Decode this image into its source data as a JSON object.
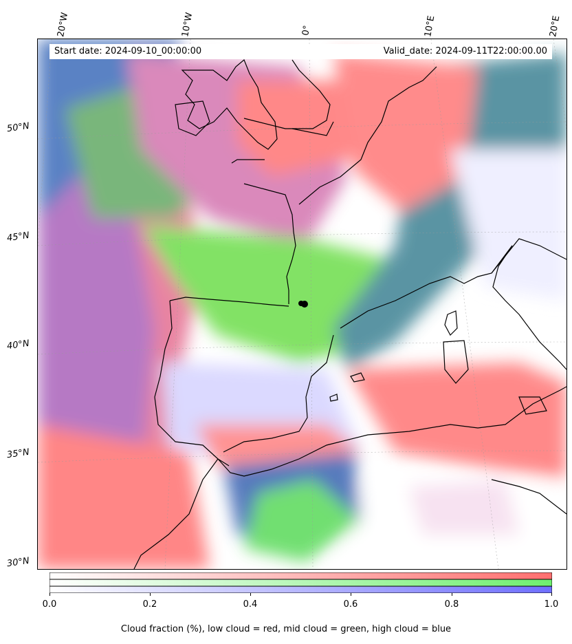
{
  "header": {
    "start_date": "Start date: 2024-09-10_00:00:00",
    "valid_date": "Valid_date: 2024-09-11T22:00:00.00"
  },
  "map": {
    "longitude_labels": [
      "20°W",
      "10°W",
      "0°",
      "10°E",
      "20°E"
    ],
    "latitude_labels": [
      "50°N",
      "45°N",
      "40°N",
      "35°N",
      "30°N"
    ],
    "layers": {
      "low_cloud_color": "#ff7070",
      "mid_cloud_color": "#70ee60",
      "high_cloud_color": "#6e6ef0",
      "coastline_color": "#000000"
    }
  },
  "colorbar": {
    "ticks": [
      "0.0",
      "0.2",
      "0.4",
      "0.6",
      "0.8",
      "1.0"
    ],
    "label": "Cloud fraction (%), low cloud = red, mid cloud = green, high cloud = blue",
    "range": [
      0.0,
      1.0
    ],
    "rows": [
      "#ff6f6f",
      "#6fef6f",
      "#6f6fff"
    ]
  }
}
